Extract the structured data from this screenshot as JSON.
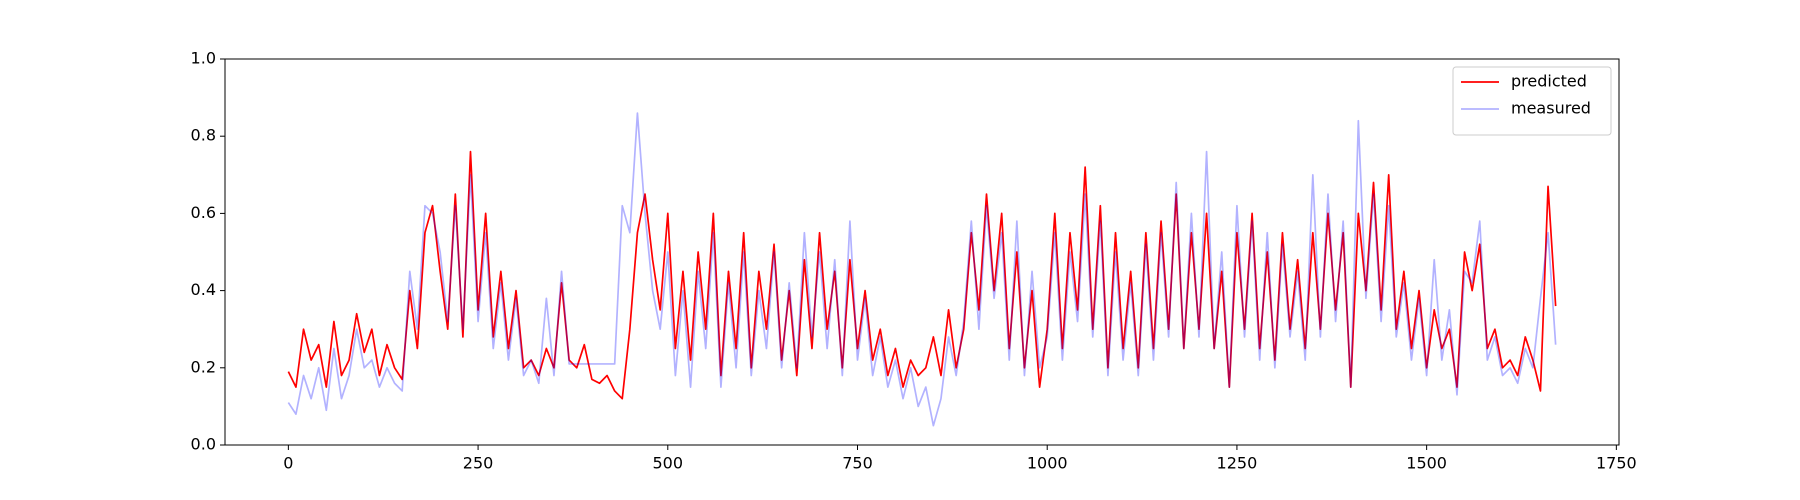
{
  "chart_data": {
    "type": "line",
    "x": [
      0,
      10,
      20,
      30,
      40,
      50,
      60,
      70,
      80,
      90,
      100,
      110,
      120,
      130,
      140,
      150,
      160,
      170,
      180,
      190,
      200,
      210,
      220,
      230,
      240,
      250,
      260,
      270,
      280,
      290,
      300,
      310,
      320,
      330,
      340,
      350,
      360,
      370,
      380,
      390,
      400,
      410,
      420,
      430,
      440,
      450,
      460,
      470,
      480,
      490,
      500,
      510,
      520,
      530,
      540,
      550,
      560,
      570,
      580,
      590,
      600,
      610,
      620,
      630,
      640,
      650,
      660,
      670,
      680,
      690,
      700,
      710,
      720,
      730,
      740,
      750,
      760,
      770,
      780,
      790,
      800,
      810,
      820,
      830,
      840,
      850,
      860,
      870,
      880,
      890,
      900,
      910,
      920,
      930,
      940,
      950,
      960,
      970,
      980,
      990,
      1000,
      1010,
      1020,
      1030,
      1040,
      1050,
      1060,
      1070,
      1080,
      1090,
      1100,
      1110,
      1120,
      1130,
      1140,
      1150,
      1160,
      1170,
      1180,
      1190,
      1200,
      1210,
      1220,
      1230,
      1240,
      1250,
      1260,
      1270,
      1280,
      1290,
      1300,
      1310,
      1320,
      1330,
      1340,
      1350,
      1360,
      1370,
      1380,
      1390,
      1400,
      1410,
      1420,
      1430,
      1440,
      1450,
      1460,
      1470,
      1480,
      1490,
      1500,
      1510,
      1520,
      1530,
      1540,
      1550,
      1560,
      1570,
      1580,
      1590,
      1600,
      1610,
      1620,
      1630,
      1640,
      1650,
      1660,
      1670
    ],
    "series": [
      {
        "name": "predicted",
        "color": "#ff0000",
        "alpha": 1,
        "values": [
          0.19,
          0.15,
          0.3,
          0.22,
          0.26,
          0.15,
          0.32,
          0.18,
          0.22,
          0.34,
          0.24,
          0.3,
          0.18,
          0.26,
          0.2,
          0.17,
          0.4,
          0.25,
          0.55,
          0.62,
          0.45,
          0.3,
          0.65,
          0.28,
          0.76,
          0.35,
          0.6,
          0.28,
          0.45,
          0.25,
          0.4,
          0.2,
          0.22,
          0.18,
          0.25,
          0.2,
          0.42,
          0.22,
          0.2,
          0.26,
          0.17,
          0.16,
          0.18,
          0.14,
          0.12,
          0.3,
          0.55,
          0.65,
          0.48,
          0.35,
          0.6,
          0.25,
          0.45,
          0.22,
          0.5,
          0.3,
          0.6,
          0.18,
          0.45,
          0.25,
          0.55,
          0.2,
          0.45,
          0.3,
          0.52,
          0.22,
          0.4,
          0.18,
          0.48,
          0.25,
          0.55,
          0.3,
          0.45,
          0.2,
          0.48,
          0.25,
          0.4,
          0.22,
          0.3,
          0.18,
          0.25,
          0.15,
          0.22,
          0.18,
          0.2,
          0.28,
          0.18,
          0.35,
          0.2,
          0.3,
          0.55,
          0.35,
          0.65,
          0.4,
          0.6,
          0.25,
          0.5,
          0.2,
          0.4,
          0.15,
          0.3,
          0.6,
          0.25,
          0.55,
          0.35,
          0.72,
          0.3,
          0.62,
          0.2,
          0.55,
          0.25,
          0.45,
          0.2,
          0.55,
          0.25,
          0.58,
          0.3,
          0.65,
          0.25,
          0.55,
          0.3,
          0.6,
          0.25,
          0.45,
          0.15,
          0.55,
          0.3,
          0.6,
          0.25,
          0.5,
          0.22,
          0.55,
          0.3,
          0.48,
          0.25,
          0.55,
          0.3,
          0.6,
          0.35,
          0.55,
          0.15,
          0.6,
          0.4,
          0.68,
          0.35,
          0.7,
          0.3,
          0.45,
          0.25,
          0.4,
          0.2,
          0.35,
          0.25,
          0.3,
          0.15,
          0.5,
          0.4,
          0.52,
          0.25,
          0.3,
          0.2,
          0.22,
          0.18,
          0.28,
          0.22,
          0.14,
          0.67,
          0.36
        ]
      },
      {
        "name": "measured",
        "color": "#0000ff",
        "alpha": 0.3,
        "values": [
          0.11,
          0.08,
          0.18,
          0.12,
          0.2,
          0.09,
          0.25,
          0.12,
          0.18,
          0.3,
          0.2,
          0.22,
          0.15,
          0.2,
          0.16,
          0.14,
          0.45,
          0.3,
          0.62,
          0.6,
          0.5,
          0.32,
          0.62,
          0.3,
          0.7,
          0.32,
          0.55,
          0.25,
          0.42,
          0.22,
          0.38,
          0.18,
          0.22,
          0.16,
          0.38,
          0.18,
          0.45,
          0.21,
          0.21,
          0.21,
          0.21,
          0.21,
          0.21,
          0.21,
          0.62,
          0.55,
          0.86,
          0.6,
          0.4,
          0.3,
          0.5,
          0.18,
          0.4,
          0.15,
          0.45,
          0.25,
          0.55,
          0.15,
          0.42,
          0.2,
          0.5,
          0.18,
          0.4,
          0.25,
          0.5,
          0.2,
          0.42,
          0.2,
          0.55,
          0.28,
          0.5,
          0.25,
          0.48,
          0.18,
          0.58,
          0.22,
          0.38,
          0.18,
          0.28,
          0.15,
          0.22,
          0.12,
          0.2,
          0.1,
          0.15,
          0.05,
          0.12,
          0.28,
          0.18,
          0.32,
          0.58,
          0.3,
          0.62,
          0.38,
          0.55,
          0.22,
          0.58,
          0.18,
          0.45,
          0.2,
          0.28,
          0.55,
          0.22,
          0.5,
          0.32,
          0.65,
          0.28,
          0.58,
          0.18,
          0.5,
          0.22,
          0.42,
          0.18,
          0.52,
          0.22,
          0.55,
          0.28,
          0.68,
          0.25,
          0.6,
          0.28,
          0.76,
          0.25,
          0.5,
          0.15,
          0.62,
          0.28,
          0.58,
          0.22,
          0.55,
          0.2,
          0.52,
          0.28,
          0.45,
          0.22,
          0.7,
          0.28,
          0.65,
          0.32,
          0.58,
          0.15,
          0.84,
          0.38,
          0.65,
          0.32,
          0.62,
          0.28,
          0.42,
          0.22,
          0.38,
          0.18,
          0.48,
          0.22,
          0.35,
          0.13,
          0.45,
          0.42,
          0.58,
          0.22,
          0.28,
          0.18,
          0.2,
          0.16,
          0.25,
          0.2,
          0.38,
          0.55,
          0.26
        ]
      }
    ],
    "xlim": [
      -83.5,
      1753.5
    ],
    "xticks": [
      0,
      250,
      500,
      750,
      1000,
      1250,
      1500,
      1750
    ],
    "ylim": [
      0,
      1
    ],
    "yticks": [
      {
        "value": 0,
        "label": "0.0"
      },
      {
        "value": 0.2,
        "label": "0.2"
      },
      {
        "value": 0.4,
        "label": "0.4"
      },
      {
        "value": 0.6,
        "label": "0.6"
      },
      {
        "value": 0.8,
        "label": "0.8"
      },
      {
        "value": 1,
        "label": "1.0"
      }
    ],
    "legend": "upper right",
    "grid": false
  }
}
